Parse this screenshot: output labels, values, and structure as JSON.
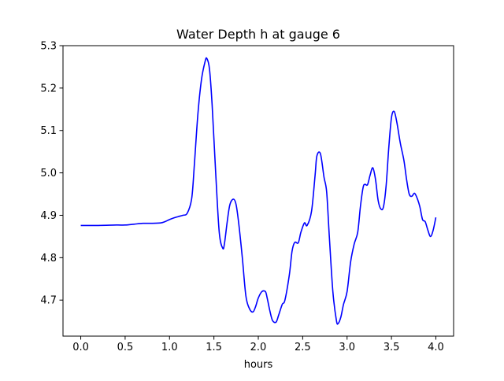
{
  "chart_data": {
    "type": "line",
    "title": "Water Depth h at gauge 6",
    "xlabel": "hours",
    "ylabel": "",
    "xlim": [
      -0.2,
      4.2
    ],
    "ylim": [
      4.615,
      5.3
    ],
    "xticks": [
      0.0,
      0.5,
      1.0,
      1.5,
      2.0,
      2.5,
      3.0,
      3.5,
      4.0
    ],
    "xtick_labels": [
      "0.0",
      "0.5",
      "1.0",
      "1.5",
      "2.0",
      "2.5",
      "3.0",
      "3.5",
      "4.0"
    ],
    "yticks": [
      4.7,
      4.8,
      4.9,
      5.0,
      5.1,
      5.2,
      5.3
    ],
    "ytick_labels": [
      "4.7",
      "4.8",
      "4.9",
      "5.0",
      "5.1",
      "5.2",
      "5.3"
    ],
    "grid": false,
    "legend": "none",
    "series": [
      {
        "color": "#0000ff",
        "x": [
          0.0,
          0.2,
          0.4,
          0.5,
          0.6,
          0.7,
          0.8,
          0.9,
          0.95,
          1.0,
          1.05,
          1.1,
          1.15,
          1.2,
          1.25,
          1.28,
          1.32,
          1.36,
          1.4,
          1.42,
          1.45,
          1.48,
          1.52,
          1.56,
          1.6,
          1.62,
          1.65,
          1.68,
          1.72,
          1.75,
          1.78,
          1.82,
          1.86,
          1.9,
          1.94,
          1.97,
          2.0,
          2.04,
          2.08,
          2.1,
          2.13,
          2.16,
          2.2,
          2.23,
          2.27,
          2.3,
          2.35,
          2.38,
          2.41,
          2.45,
          2.48,
          2.52,
          2.55,
          2.6,
          2.64,
          2.66,
          2.7,
          2.74,
          2.77,
          2.8,
          2.84,
          2.88,
          2.9,
          2.93,
          2.96,
          3.0,
          3.04,
          3.08,
          3.12,
          3.15,
          3.18,
          3.2,
          3.23,
          3.26,
          3.29,
          3.32,
          3.35,
          3.38,
          3.41,
          3.44,
          3.47,
          3.5,
          3.53,
          3.56,
          3.6,
          3.64,
          3.67,
          3.7,
          3.73,
          3.76,
          3.79,
          3.82,
          3.85,
          3.88,
          3.91,
          3.94,
          3.97,
          4.0
        ],
        "y": [
          4.876,
          4.876,
          4.877,
          4.877,
          4.879,
          4.881,
          4.881,
          4.882,
          4.885,
          4.89,
          4.894,
          4.897,
          4.9,
          4.905,
          4.94,
          5.02,
          5.14,
          5.22,
          5.262,
          5.27,
          5.245,
          5.16,
          5.0,
          4.86,
          4.822,
          4.835,
          4.885,
          4.925,
          4.938,
          4.925,
          4.88,
          4.8,
          4.71,
          4.68,
          4.672,
          4.685,
          4.705,
          4.72,
          4.72,
          4.705,
          4.675,
          4.652,
          4.648,
          4.665,
          4.69,
          4.7,
          4.76,
          4.815,
          4.836,
          4.835,
          4.86,
          4.882,
          4.876,
          4.91,
          4.995,
          5.04,
          5.045,
          4.99,
          4.955,
          4.85,
          4.72,
          4.652,
          4.645,
          4.66,
          4.69,
          4.72,
          4.79,
          4.832,
          4.86,
          4.92,
          4.965,
          4.973,
          4.972,
          4.995,
          5.012,
          4.985,
          4.935,
          4.915,
          4.92,
          4.97,
          5.06,
          5.13,
          5.145,
          5.12,
          5.07,
          5.03,
          4.985,
          4.95,
          4.945,
          4.952,
          4.94,
          4.92,
          4.89,
          4.885,
          4.865,
          4.85,
          4.865,
          4.895
        ]
      }
    ]
  }
}
